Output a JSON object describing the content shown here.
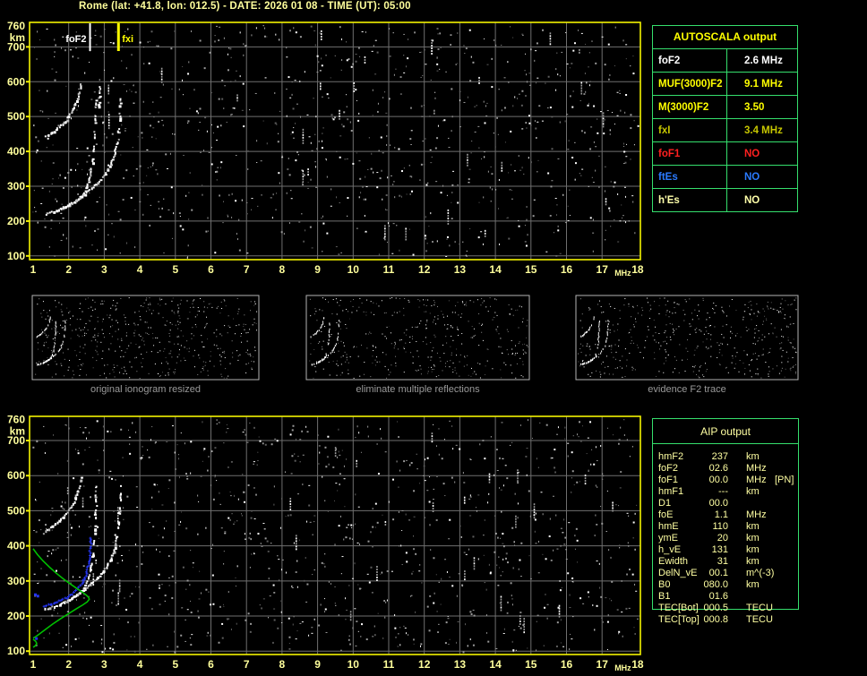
{
  "title": "Rome (lat: +41.8, lon: 012.5) - DATE: 2026 01 08 - TIME (UT): 05:00",
  "colors": {
    "background": "#000000",
    "title_text": "#ffff9c",
    "axis_text": "#ffff9c",
    "plot_border": "#f2f200",
    "grid": "#6f6f6f",
    "table_border": "#35df6d",
    "trace_white": "#ffffff",
    "noise_gray": "#9a9a9a",
    "profile_green": "#00c000",
    "restored_blue": "#2535f0",
    "caption_gray": "#9a9a9a"
  },
  "autoscala_table": {
    "header": "AUTOSCALA output",
    "rows": [
      {
        "label": "foF2",
        "value": "2.6 MHz",
        "color": "white"
      },
      {
        "label": "MUF(3000)F2",
        "value": "9.1 MHz",
        "color": "yellow"
      },
      {
        "label": "M(3000)F2",
        "value": "3.50",
        "color": "yellow"
      },
      {
        "label": "fxI",
        "value": "3.4 MHz",
        "color": "olive"
      },
      {
        "label": "foF1",
        "value": "NO",
        "color": "red"
      },
      {
        "label": "ftEs",
        "value": "NO",
        "color": "blue"
      },
      {
        "label": "h'Es",
        "value": "NO",
        "color": "cream"
      }
    ]
  },
  "aip_table": {
    "header": "AIP output",
    "rows": [
      {
        "name": "hmF2",
        "value": "237",
        "unit": "km",
        "note": ""
      },
      {
        "name": "foF2",
        "value": "02.6",
        "unit": "MHz",
        "note": ""
      },
      {
        "name": "foF1",
        "value": "00.0",
        "unit": "MHz",
        "note": "[PN]"
      },
      {
        "name": "hmF1",
        "value": "---",
        "unit": "km",
        "note": ""
      },
      {
        "name": "D1",
        "value": "00.0",
        "unit": "",
        "note": ""
      },
      {
        "name": "foE",
        "value": "1.1",
        "unit": "MHz",
        "note": ""
      },
      {
        "name": "hmE",
        "value": "110",
        "unit": "km",
        "note": ""
      },
      {
        "name": "ymE",
        "value": "20",
        "unit": "km",
        "note": ""
      },
      {
        "name": "h_vE",
        "value": "131",
        "unit": "km",
        "note": ""
      },
      {
        "name": "Ewidth",
        "value": "31",
        "unit": "km",
        "note": ""
      },
      {
        "name": "DelN_vE",
        "value": "00.1",
        "unit": "m^(-3)",
        "note": ""
      },
      {
        "name": "B0",
        "value": "080.0",
        "unit": "km",
        "note": ""
      },
      {
        "name": "B1",
        "value": "01.6",
        "unit": "",
        "note": ""
      },
      {
        "name": "TEC[Bot]",
        "value": "000.5",
        "unit": "TECU",
        "note": ""
      },
      {
        "name": "TEC[Top]",
        "value": "000.8",
        "unit": "TECU",
        "note": ""
      }
    ]
  },
  "thumbnails": [
    {
      "caption": "original ionogram resized",
      "noise_dots": 520,
      "seed": 101
    },
    {
      "caption": "eliminate multiple reflections",
      "noise_dots": 430,
      "seed": 202
    },
    {
      "caption": "evidence F2 trace",
      "noise_dots": 470,
      "seed": 303
    }
  ],
  "chart_data": [
    {
      "id": "top-ionogram",
      "type": "scatter",
      "xlabel": "MHz",
      "ylabel": "km",
      "xlim": [
        1,
        18
      ],
      "ylim": [
        100,
        760
      ],
      "xticks": [
        1,
        2,
        3,
        4,
        5,
        6,
        7,
        8,
        9,
        10,
        11,
        12,
        13,
        14,
        15,
        16,
        17,
        18
      ],
      "yticks": [
        760,
        700,
        600,
        500,
        400,
        300,
        200,
        100
      ],
      "grid": true,
      "annotations": [
        {
          "label": "foF2",
          "x": 2.6,
          "color": "#ffffff",
          "side": "left"
        },
        {
          "label": "fxi",
          "x": 3.4,
          "color": "#ffff00",
          "side": "right"
        }
      ],
      "series": [
        {
          "name": "F2-ordinary-trace-1st-hop",
          "color": "#ffffff",
          "dash_above": 345,
          "points": [
            [
              1.33,
              222
            ],
            [
              1.45,
              226
            ],
            [
              1.58,
              230
            ],
            [
              1.72,
              235
            ],
            [
              1.86,
              241
            ],
            [
              2.0,
              248
            ],
            [
              2.13,
              256
            ],
            [
              2.26,
              266
            ],
            [
              2.38,
              279
            ],
            [
              2.47,
              295
            ],
            [
              2.54,
              315
            ],
            [
              2.6,
              340
            ],
            [
              2.645,
              370
            ],
            [
              2.68,
              405
            ],
            [
              2.705,
              445
            ],
            [
              2.725,
              490
            ],
            [
              2.74,
              535
            ],
            [
              2.75,
              575
            ]
          ]
        },
        {
          "name": "F2-extraordinary-trace-1st-hop",
          "color": "#ffffff",
          "dash_above": 420,
          "points": [
            [
              1.78,
              238
            ],
            [
              1.95,
              247
            ],
            [
              2.12,
              257
            ],
            [
              2.3,
              269
            ],
            [
              2.48,
              283
            ],
            [
              2.66,
              299
            ],
            [
              2.84,
              317
            ],
            [
              3.0,
              337
            ],
            [
              3.13,
              359
            ],
            [
              3.24,
              385
            ],
            [
              3.32,
              417
            ],
            [
              3.375,
              455
            ],
            [
              3.41,
              498
            ],
            [
              3.43,
              540
            ],
            [
              3.445,
              580
            ]
          ]
        },
        {
          "name": "second-hop-o-trace",
          "color": "#ffffff",
          "dash_above": 555,
          "points": [
            [
              1.33,
              444
            ],
            [
              1.47,
              453
            ],
            [
              1.62,
              464
            ],
            [
              1.77,
              477
            ],
            [
              1.92,
              493
            ],
            [
              2.05,
              512
            ],
            [
              2.16,
              534
            ],
            [
              2.25,
              560
            ],
            [
              2.31,
              585
            ],
            [
              2.34,
              602
            ]
          ]
        },
        {
          "name": "second-hop-x-trace",
          "color": "#ffffff",
          "dash_above": 500,
          "points": [
            [
              2.83,
              530
            ],
            [
              2.845,
              555
            ],
            [
              2.855,
              575
            ],
            [
              2.86,
              592
            ]
          ]
        }
      ],
      "noise": {
        "dots": 980,
        "streaks": 26,
        "seed": 7
      }
    },
    {
      "id": "bottom-ionogram",
      "type": "scatter",
      "xlabel": "MHz",
      "ylabel": "km",
      "xlim": [
        1,
        18
      ],
      "ylim": [
        100,
        760
      ],
      "xticks": [
        1,
        2,
        3,
        4,
        5,
        6,
        7,
        8,
        9,
        10,
        11,
        12,
        13,
        14,
        15,
        16,
        17,
        18
      ],
      "yticks": [
        760,
        700,
        600,
        500,
        400,
        300,
        200,
        100
      ],
      "grid": true,
      "annotations": [],
      "series": [
        {
          "name": "F2-ordinary-trace-1st-hop",
          "color": "#ffffff",
          "dash_above": 345,
          "points": [
            [
              1.33,
              222
            ],
            [
              1.45,
              226
            ],
            [
              1.58,
              230
            ],
            [
              1.72,
              235
            ],
            [
              1.86,
              241
            ],
            [
              2.0,
              248
            ],
            [
              2.13,
              256
            ],
            [
              2.26,
              266
            ],
            [
              2.38,
              279
            ],
            [
              2.47,
              295
            ],
            [
              2.54,
              315
            ],
            [
              2.6,
              340
            ],
            [
              2.645,
              370
            ],
            [
              2.68,
              405
            ],
            [
              2.705,
              445
            ],
            [
              2.725,
              490
            ],
            [
              2.74,
              535
            ],
            [
              2.75,
              575
            ]
          ]
        },
        {
          "name": "F2-extraordinary-trace-1st-hop",
          "color": "#ffffff",
          "dash_above": 420,
          "points": [
            [
              1.78,
              238
            ],
            [
              1.95,
              247
            ],
            [
              2.12,
              257
            ],
            [
              2.3,
              269
            ],
            [
              2.48,
              283
            ],
            [
              2.66,
              299
            ],
            [
              2.84,
              317
            ],
            [
              3.0,
              337
            ],
            [
              3.13,
              359
            ],
            [
              3.24,
              385
            ],
            [
              3.32,
              417
            ],
            [
              3.375,
              455
            ],
            [
              3.41,
              498
            ],
            [
              3.43,
              540
            ],
            [
              3.445,
              580
            ]
          ]
        },
        {
          "name": "second-hop-o-trace",
          "color": "#ffffff",
          "dash_above": 555,
          "points": [
            [
              1.33,
              444
            ],
            [
              1.47,
              453
            ],
            [
              1.62,
              464
            ],
            [
              1.77,
              477
            ],
            [
              1.92,
              493
            ],
            [
              2.05,
              512
            ],
            [
              2.16,
              534
            ],
            [
              2.25,
              560
            ],
            [
              2.31,
              585
            ],
            [
              2.34,
              602
            ]
          ]
        },
        {
          "name": "autoscala-restored-trace",
          "color": "#2535f0",
          "style": "cross",
          "points": [
            [
              1.32,
              229
            ],
            [
              1.42,
              231
            ],
            [
              1.52,
              234
            ],
            [
              1.62,
              238
            ],
            [
              1.72,
              242
            ],
            [
              1.83,
              247
            ],
            [
              1.94,
              252
            ],
            [
              2.05,
              259
            ],
            [
              2.15,
              267
            ],
            [
              2.25,
              276
            ],
            [
              2.34,
              287
            ],
            [
              2.42,
              300
            ],
            [
              2.48,
              315
            ],
            [
              2.53,
              333
            ],
            [
              2.57,
              355
            ],
            [
              2.6,
              380
            ],
            [
              2.62,
              405
            ],
            [
              2.63,
              428
            ]
          ]
        }
      ],
      "profile": {
        "name": "electron-density-profile",
        "color": "#00c000",
        "points": [
          [
            1.0,
            392
          ],
          [
            1.12,
            375
          ],
          [
            1.28,
            357
          ],
          [
            1.45,
            340
          ],
          [
            1.65,
            322
          ],
          [
            1.85,
            306
          ],
          [
            2.05,
            291
          ],
          [
            2.25,
            277
          ],
          [
            2.4,
            267
          ],
          [
            2.5,
            259
          ],
          [
            2.56,
            253
          ],
          [
            2.58,
            248
          ],
          [
            2.52,
            240
          ],
          [
            2.4,
            232
          ],
          [
            2.22,
            221
          ],
          [
            2.0,
            207
          ],
          [
            1.78,
            193
          ],
          [
            1.55,
            177
          ],
          [
            1.35,
            162
          ],
          [
            1.18,
            149
          ],
          [
            1.07,
            141
          ],
          [
            1.0,
            137
          ]
        ],
        "loop": [
          [
            1.0,
            134
          ],
          [
            1.07,
            128
          ],
          [
            1.1,
            122
          ],
          [
            1.06,
            115
          ],
          [
            1.0,
            111
          ]
        ]
      },
      "extra_blue_dots": [
        [
          1.05,
          262
        ],
        [
          1.12,
          258
        ],
        [
          1.08,
          137
        ]
      ],
      "noise": {
        "dots": 1020,
        "streaks": 30,
        "seed": 13
      }
    }
  ]
}
